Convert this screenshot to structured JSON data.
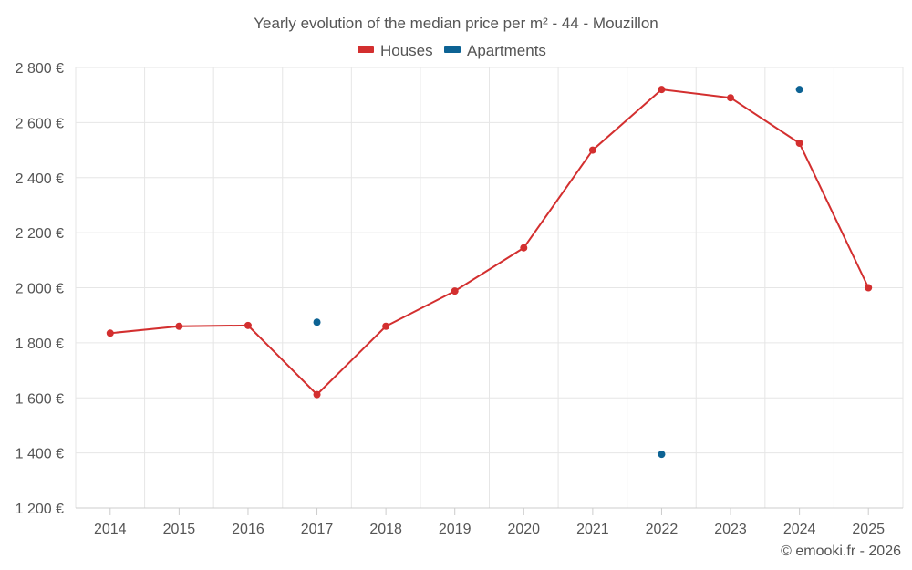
{
  "chart_data": {
    "type": "line",
    "title": "Yearly evolution of the median price per m² - 44 - Mouzillon",
    "categories": [
      "2014",
      "2015",
      "2016",
      "2017",
      "2018",
      "2019",
      "2020",
      "2021",
      "2022",
      "2023",
      "2024",
      "2025"
    ],
    "y_tick_labels": [
      "1 200 €",
      "1 400 €",
      "1 600 €",
      "1 800 €",
      "2 000 €",
      "2 200 €",
      "2 400 €",
      "2 600 €",
      "2 800 €"
    ],
    "ylim": [
      1200,
      2800
    ],
    "y_ticks": [
      1200,
      1400,
      1600,
      1800,
      2000,
      2200,
      2400,
      2600,
      2800
    ],
    "grid": true,
    "legend_position": "top-center",
    "series": [
      {
        "name": "Houses",
        "color": "#d32f2f",
        "values": [
          1835,
          1860,
          1863,
          1612,
          1860,
          1988,
          2145,
          2500,
          2720,
          2690,
          2525,
          2000
        ]
      },
      {
        "name": "Apartments",
        "color": "#0d6394",
        "values": [
          null,
          null,
          null,
          1875,
          null,
          null,
          null,
          null,
          1395,
          null,
          2720,
          null
        ]
      }
    ],
    "credit": "© emooki.fr - 2026"
  }
}
